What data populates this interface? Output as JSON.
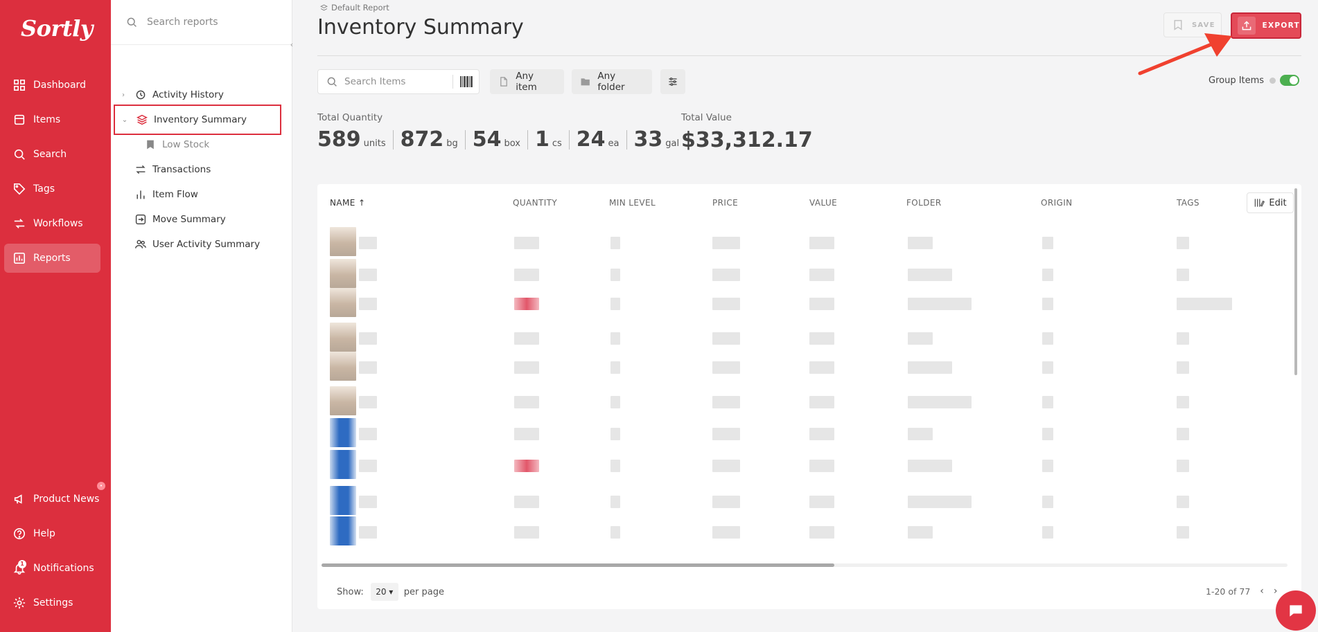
{
  "app": {
    "logo_text": "Sortly"
  },
  "nav": {
    "items": [
      {
        "label": "Dashboard",
        "icon": "grid-icon"
      },
      {
        "label": "Items",
        "icon": "box-icon"
      },
      {
        "label": "Search",
        "icon": "search-icon"
      },
      {
        "label": "Tags",
        "icon": "tag-icon"
      },
      {
        "label": "Workflows",
        "icon": "workflow-icon"
      },
      {
        "label": "Reports",
        "icon": "chart-icon",
        "active": true
      }
    ],
    "bottom": [
      {
        "label": "Product News",
        "icon": "megaphone-icon"
      },
      {
        "label": "Help",
        "icon": "help-icon"
      },
      {
        "label": "Notifications",
        "icon": "bell-icon",
        "badge": "1"
      },
      {
        "label": "Settings",
        "icon": "gear-icon"
      }
    ]
  },
  "reports_panel": {
    "search_placeholder": "Search reports",
    "items": [
      {
        "label": "Activity History"
      },
      {
        "label": "Inventory Summary"
      },
      {
        "label": "Low Stock"
      },
      {
        "label": "Transactions"
      },
      {
        "label": "Item Flow"
      },
      {
        "label": "Move Summary"
      },
      {
        "label": "User Activity Summary"
      }
    ]
  },
  "header": {
    "breadcrumb": "Default Report",
    "title": "Inventory Summary",
    "save_label": "SAVE",
    "export_label": "EXPORT"
  },
  "filters": {
    "search_placeholder": "Search Items",
    "any_item": "Any item",
    "any_folder": "Any folder",
    "group_items_label": "Group Items"
  },
  "totals": {
    "quantity_label": "Total Quantity",
    "value_label": "Total Value",
    "total_value": "$33,312.17",
    "quantities": [
      {
        "num": "589",
        "unit": "units"
      },
      {
        "num": "872",
        "unit": "bg"
      },
      {
        "num": "54",
        "unit": "box"
      },
      {
        "num": "1",
        "unit": "cs"
      },
      {
        "num": "24",
        "unit": "ea"
      },
      {
        "num": "33",
        "unit": "gal"
      }
    ]
  },
  "table": {
    "columns": [
      "NAME",
      "QUANTITY",
      "MIN LEVEL",
      "PRICE",
      "VALUE",
      "FOLDER",
      "ORIGIN",
      "TAGS"
    ],
    "sort_indicator": "↑",
    "edit_label": "Edit"
  },
  "pagination": {
    "show_label": "Show:",
    "per_page_value": "20",
    "per_page_suffix": "per page",
    "range": "1-20 of 77"
  },
  "colors": {
    "brand": "#dc2f3e",
    "toggle_on": "#4caf50"
  }
}
